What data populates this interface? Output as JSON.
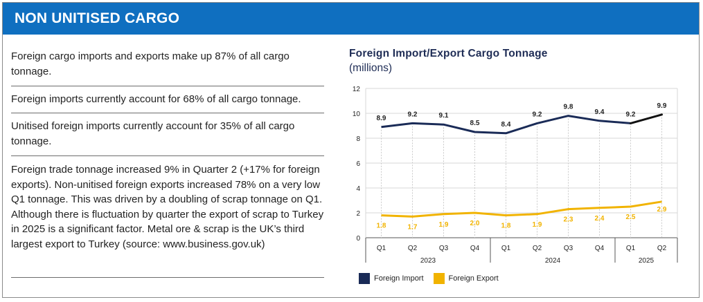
{
  "header": {
    "title": "NON UNITISED CARGO"
  },
  "info": [
    "Foreign cargo imports and exports make up 87% of all cargo tonnage.",
    "Foreign imports currently account for 68% of all cargo tonnage.",
    "Unitised foreign imports currently account for 35% of all cargo tonnage.",
    "Foreign trade tonnage increased 9% in Quarter 2 (+17% for foreign exports).  Non-unitised foreign exports increased 78% on a very low Q1 tonnage.  This was driven by a doubling of scrap tonnage on Q1.  Although there is fluctuation by quarter the export of scrap to Turkey in 2025 is a significant factor.  Metal ore & scrap is the UK’s third largest export to Turkey (source: www.business.gov.uk)"
  ],
  "colors": {
    "header": "#0f6fc0",
    "import": "#1a2b57",
    "import_latest": "#111111",
    "export": "#f1b300",
    "grid": "#d7d7d7"
  },
  "chart_data": {
    "type": "line",
    "title": "Foreign Import/Export Cargo Tonnage",
    "subtitle": "(millions)",
    "categories": [
      "Q1",
      "Q2",
      "Q3",
      "Q4",
      "Q1",
      "Q2",
      "Q3",
      "Q4",
      "Q1",
      "Q2"
    ],
    "years": [
      {
        "label": "2023",
        "count": 4
      },
      {
        "label": "2024",
        "count": 4
      },
      {
        "label": "2025",
        "count": 2
      }
    ],
    "ylim": [
      0,
      12
    ],
    "yticks": [
      "0",
      "2",
      "4",
      "6",
      "8",
      "10",
      "12"
    ],
    "grid": true,
    "legend": "bottom-left",
    "series": [
      {
        "name": "Foreign Import",
        "values": [
          8.9,
          9.2,
          9.1,
          8.5,
          8.4,
          9.2,
          9.8,
          9.4,
          9.2,
          9.9
        ],
        "labels": [
          "8.9",
          "9.2",
          "9.1",
          "8.5",
          "8.4",
          "9.2",
          "9.8",
          "9.4",
          "9.2",
          "9.9"
        ]
      },
      {
        "name": "Foreign Export",
        "values": [
          1.8,
          1.7,
          1.9,
          2.0,
          1.8,
          1.9,
          2.3,
          2.4,
          2.5,
          2.9
        ],
        "labels": [
          "1.8",
          "1.7",
          "1.9",
          "2.0",
          "1.8",
          "1.9",
          "2.3",
          "2.4",
          "2.5",
          "2.9"
        ]
      }
    ]
  }
}
